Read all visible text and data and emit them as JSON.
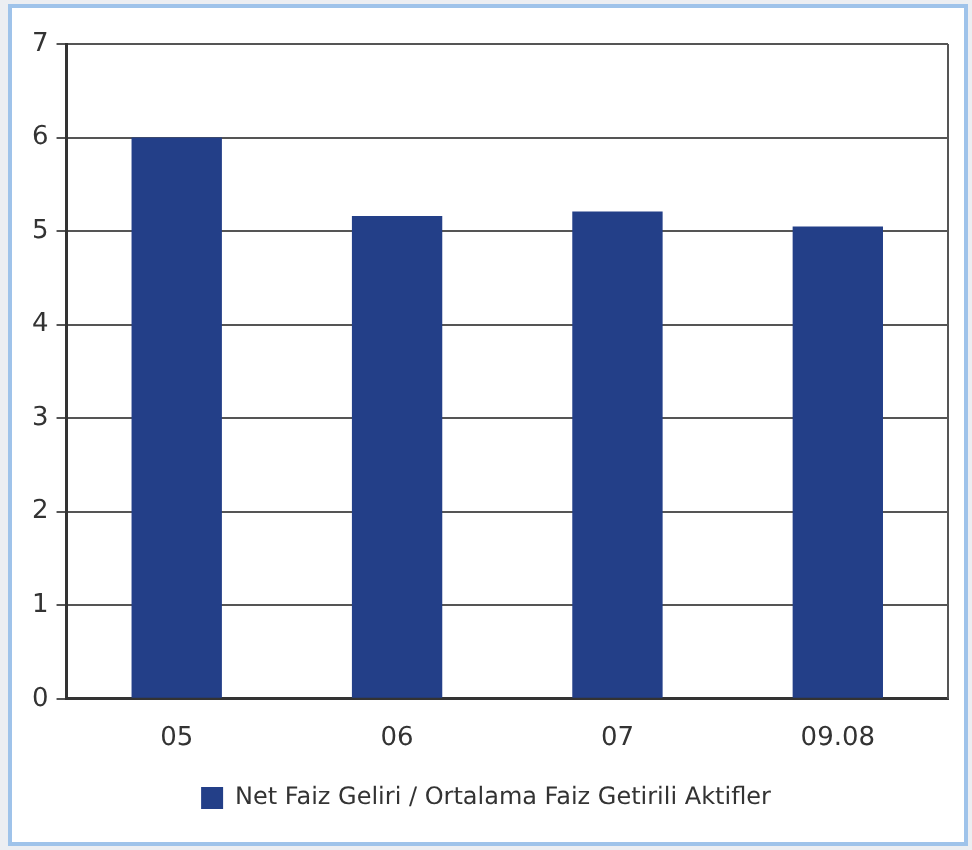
{
  "chart_data": {
    "type": "bar",
    "categories": [
      "05",
      "06",
      "07",
      "09.08"
    ],
    "series": [
      {
        "name": "Net Faiz Geliri / Ortalama Faiz Getirili Aktifler",
        "color": "#233f88",
        "values": [
          6.0,
          5.16,
          5.21,
          5.05
        ]
      }
    ],
    "ylim": [
      0,
      7
    ],
    "yticks": [
      0,
      1,
      2,
      3,
      4,
      5,
      6,
      7
    ],
    "grid": "y",
    "legend": "bottom"
  }
}
